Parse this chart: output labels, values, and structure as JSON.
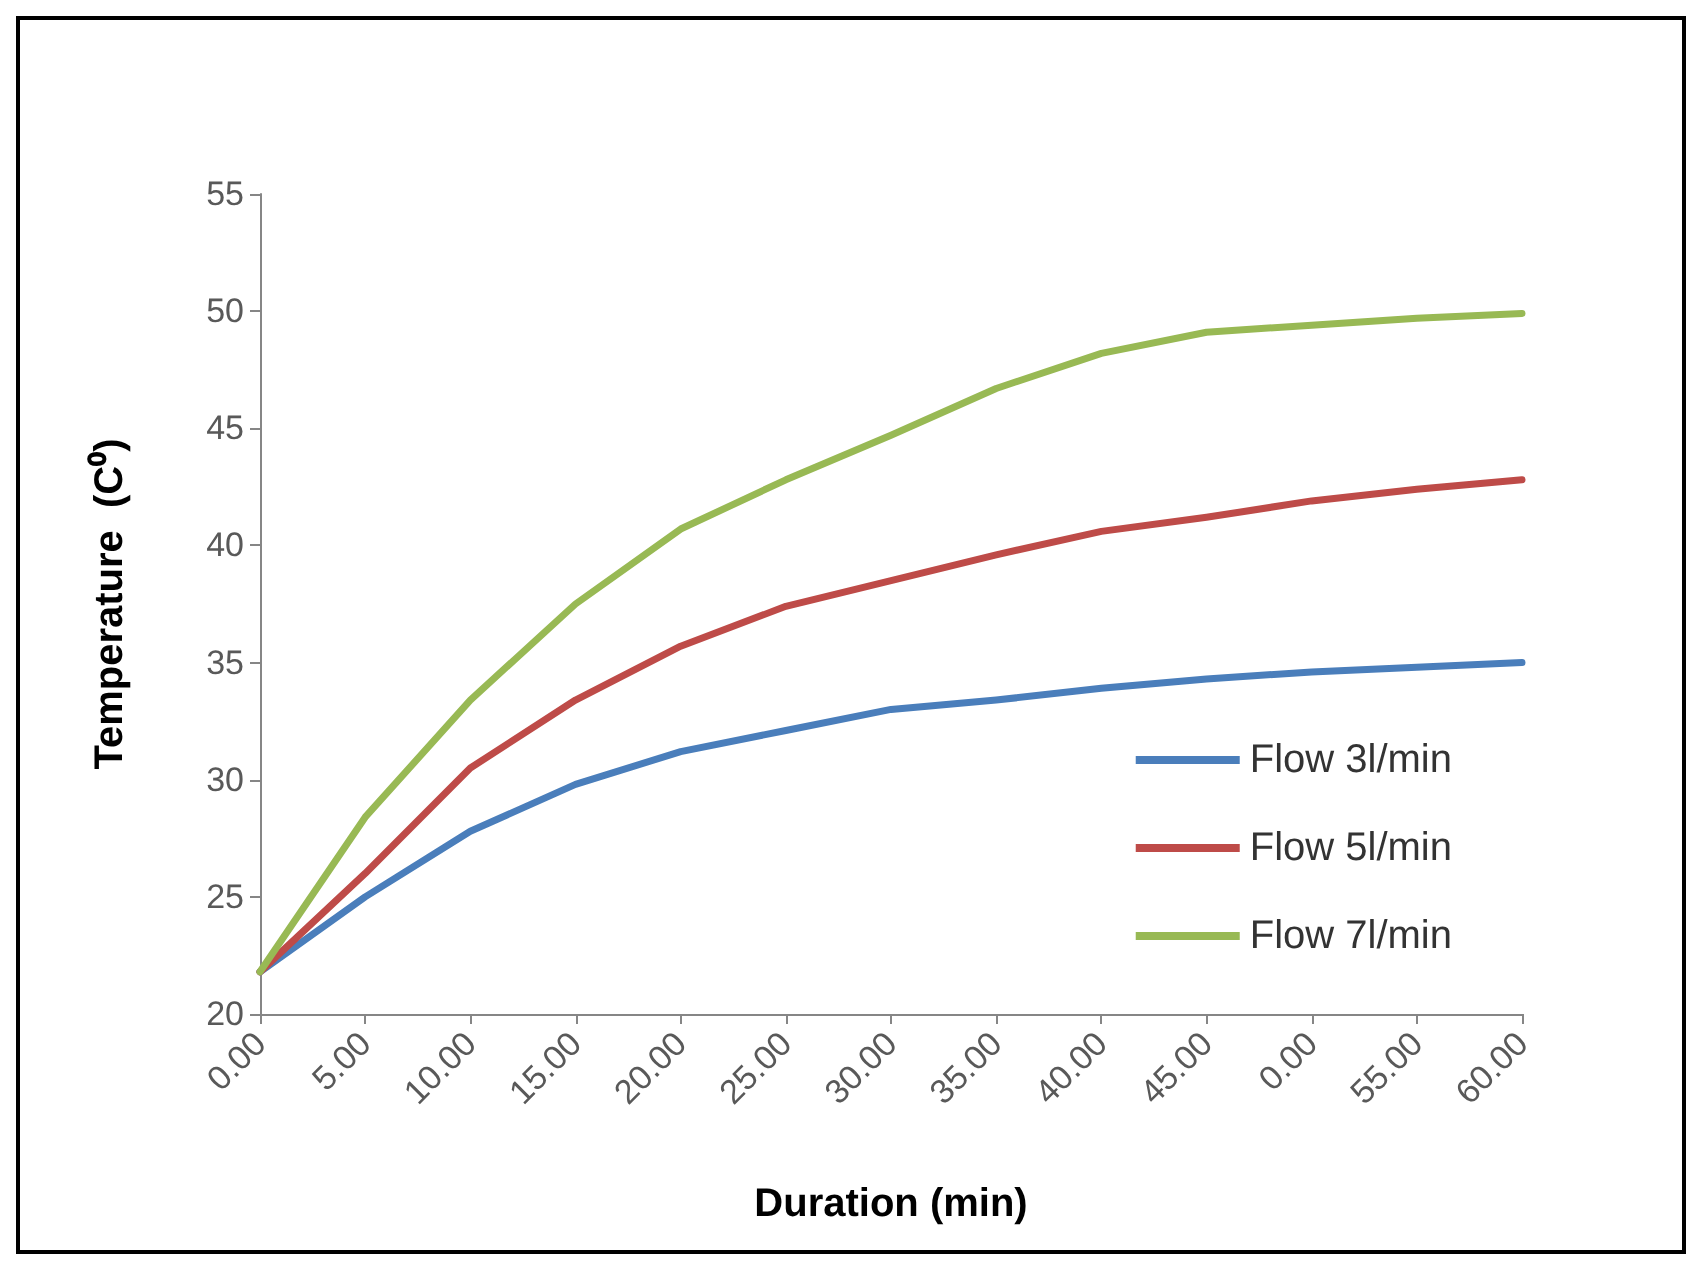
{
  "chart_data": {
    "type": "line",
    "xlabel": "Duration (min)",
    "ylabel": "Temperature  (C⁰)",
    "categories": [
      "0.00",
      "5.00",
      "10.00",
      "15.00",
      "20.00",
      "25.00",
      "30.00",
      "35.00",
      "40.00",
      "45.00",
      "0.00",
      "55.00",
      "60.00"
    ],
    "series": [
      {
        "name": "Flow 3l/min",
        "color": "#4a7ebb",
        "values": [
          21.8,
          25.0,
          27.8,
          29.8,
          31.2,
          32.1,
          33.0,
          33.4,
          33.9,
          34.3,
          34.6,
          34.8,
          35.0
        ]
      },
      {
        "name": "Flow 5l/min",
        "color": "#be4b48",
        "values": [
          21.8,
          26.0,
          30.5,
          33.4,
          35.7,
          37.4,
          38.5,
          39.6,
          40.6,
          41.2,
          41.9,
          42.4,
          42.8
        ]
      },
      {
        "name": "Flow 7l/min",
        "color": "#98b954",
        "values": [
          21.8,
          28.4,
          33.4,
          37.5,
          40.7,
          42.8,
          44.7,
          46.7,
          48.2,
          49.1,
          49.4,
          49.7,
          49.9
        ]
      }
    ],
    "ylim": [
      20,
      55
    ],
    "yticks": [
      20,
      25,
      30,
      35,
      40,
      45,
      50,
      55
    ],
    "grid": false,
    "legend": "right",
    "marker": "none",
    "line_style": "solid"
  }
}
